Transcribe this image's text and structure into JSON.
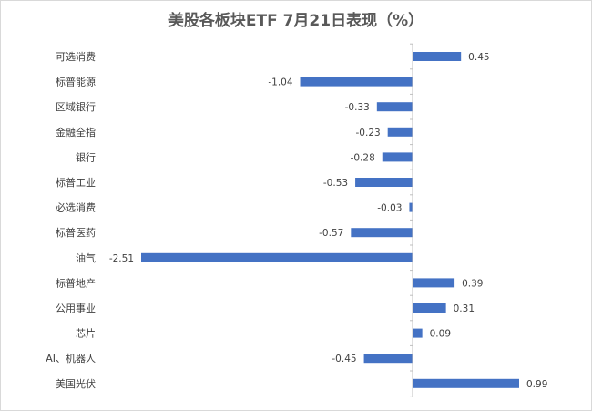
{
  "chart_data": {
    "type": "bar",
    "orientation": "horizontal",
    "title": "美股各板块ETF  7月21日表现（%）",
    "categories": [
      "可选消费",
      "标普能源",
      "区域银行",
      "金融全指",
      "银行",
      "标普工业",
      "必选消费",
      "标普医药",
      "油气",
      "标普地产",
      "公用事业",
      "芯片",
      "AI、机器人",
      "美国光伏"
    ],
    "value_labels": [
      "0.45",
      "-1.04",
      "-0.33",
      "-0.23",
      "-0.28",
      "-0.53",
      "-0.03",
      "-0.57",
      "-2.51",
      "0.39",
      "0.31",
      "0.09",
      "-0.45",
      "0.99"
    ],
    "values": [
      0.45,
      -1.04,
      -0.33,
      -0.23,
      -0.28,
      -0.53,
      -0.03,
      -0.57,
      -2.51,
      0.39,
      0.31,
      0.09,
      -0.45,
      0.99
    ],
    "xlim": [
      -2.51,
      0.99
    ],
    "grid": false,
    "legend": "none",
    "colors": {
      "bar": "#4472c4",
      "axis": "#bfbfbf",
      "text": "#404040",
      "title": "#595959"
    }
  }
}
